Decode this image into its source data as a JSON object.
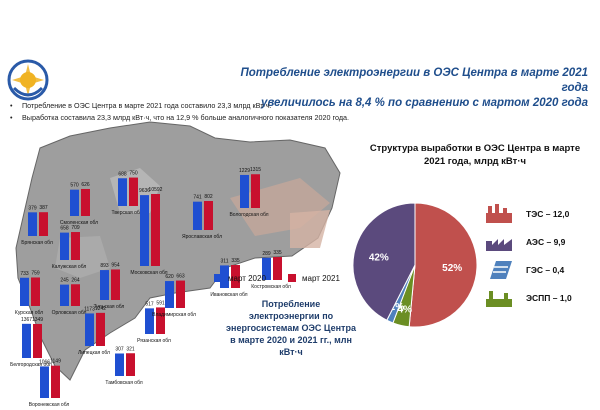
{
  "header": {
    "title_line1": "Потребление электроэнергии в ОЭС Центра в марте 2021 года",
    "title_line2": "увеличилось на 8,4 % по сравнению с мартом 2020 года"
  },
  "bullets": [
    "Потребление в ОЭС Центра в марте 2021 года составило 23,3 млрд кВт·ч.",
    "Выработка составила 23,3 млрд кВт·ч, что на 12,9 % больше аналогичного показателя 2020 года."
  ],
  "colors": {
    "y2020": "#1f4fd1",
    "y2021": "#c8102e",
    "title": "#1f4e8c",
    "tes": "#c0504d",
    "aes": "#5b4a7d",
    "ges": "#4f81bd",
    "espp": "#6b8e23"
  },
  "consumption": {
    "title": "Потребление электроэнергии по энергосистемам ОЭС Центра в марте 2020 и 2021 гг., млн кВт·ч",
    "legend_2020": "март 2020",
    "legend_2021": "март 2021"
  },
  "structure": {
    "title": "Структура выработки в ОЭС Центра в марте 2021 года, млрд кВт·ч",
    "legend": [
      {
        "icon": "tes-icon",
        "label": "ТЭС – 12,0"
      },
      {
        "icon": "aes-icon",
        "label": "АЭС – 9,9"
      },
      {
        "icon": "ges-icon",
        "label": "ГЭС – 0,4"
      },
      {
        "icon": "espp-icon",
        "label": "ЭСПП – 1,0"
      }
    ]
  },
  "chart_data": [
    {
      "type": "bar",
      "title": "Потребление электроэнергии по энергосистемам ОЭС Центра в марте 2020 и 2021 гг., млн кВт·ч",
      "series": [
        {
          "name": "март 2020"
        },
        {
          "name": "март 2021"
        }
      ],
      "regions": [
        {
          "name": "Смоленская обл",
          "v2020": "570",
          "v2021": "626"
        },
        {
          "name": "Тверская обл",
          "v2020": "688",
          "v2021": "750"
        },
        {
          "name": "Брянская обл",
          "v2020": "379",
          "v2021": "387"
        },
        {
          "name": "Калужская обл",
          "v2020": "658",
          "v2021": "709"
        },
        {
          "name": "Московская обл",
          "v2020": "9636",
          "v2021": "10592"
        },
        {
          "name": "Ярославская обл",
          "v2020": "741",
          "v2021": "802"
        },
        {
          "name": "Вологодская обл",
          "v2020": "1229",
          "v2021": "1315"
        },
        {
          "name": "Курская обл",
          "v2020": "733",
          "v2021": "759"
        },
        {
          "name": "Орловская обл",
          "v2020": "245",
          "v2021": "264"
        },
        {
          "name": "Тульская обл",
          "v2020": "893",
          "v2021": "954"
        },
        {
          "name": "Рязанская обл",
          "v2020": "517",
          "v2021": "591"
        },
        {
          "name": "Владимирская обл",
          "v2020": "620",
          "v2021": "663"
        },
        {
          "name": "Ивановская обл",
          "v2020": "311",
          "v2021": "335"
        },
        {
          "name": "Костромская обл",
          "v2020": "289",
          "v2021": "335"
        },
        {
          "name": "Белгородская обл",
          "v2020": "1367",
          "v2021": "1349"
        },
        {
          "name": "Липецкая обл",
          "v2020": "1173",
          "v2021": "1242"
        },
        {
          "name": "Воронежская обл",
          "v2020": "1066",
          "v2021": "1149"
        },
        {
          "name": "Тамбовская обл",
          "v2020": "307",
          "v2021": "321"
        }
      ]
    },
    {
      "type": "pie",
      "title": "Структура выработки в ОЭС Центра в марте 2021 года, млрд кВт·ч",
      "slices": [
        {
          "label": "ТЭС",
          "value": 12.0,
          "percent": "52%",
          "color": "#c0504d"
        },
        {
          "label": "ЭСПП",
          "value": 1.0,
          "percent": "4%",
          "color": "#6b8e23"
        },
        {
          "label": "ГЭС",
          "value": 0.4,
          "percent": "2%",
          "color": "#4f81bd"
        },
        {
          "label": "АЭС",
          "value": 9.9,
          "percent": "42%",
          "color": "#5b4a7d"
        }
      ]
    }
  ]
}
